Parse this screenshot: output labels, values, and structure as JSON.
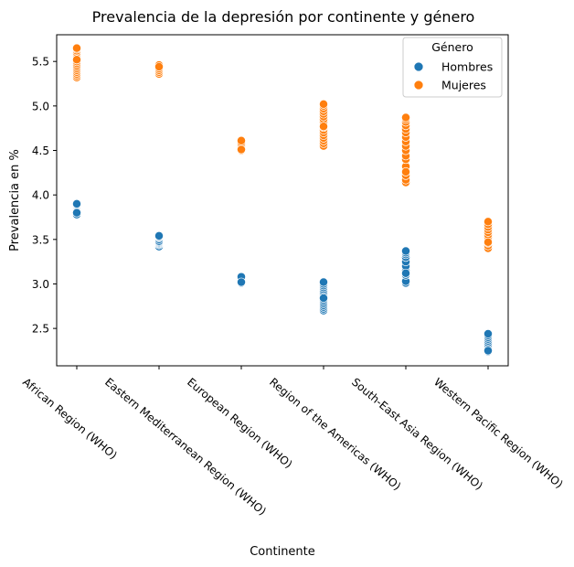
{
  "colors": {
    "hombres": "#1f77b4",
    "mujeres": "#ff7f0e"
  },
  "chart_data": {
    "type": "scatter",
    "title": "Prevalencia de la depresión por continente y género",
    "xlabel": "Continente",
    "ylabel": "Prevalencia en %",
    "categories": [
      "African Region (WHO)",
      "Eastern Mediterranean Region (WHO)",
      "European Region (WHO)",
      "Region of the Americas (WHO)",
      "South-East Asia Region (WHO)",
      "Western Pacific Region (WHO)"
    ],
    "ylim": [
      2.08,
      5.8
    ],
    "yticks": [
      "2.5",
      "3.0",
      "3.5",
      "4.0",
      "4.5",
      "5.0",
      "5.5"
    ],
    "grid": false,
    "legend": {
      "title": "Género",
      "placement": "top-right"
    },
    "series": [
      {
        "name": "Hombres",
        "color": "#1f77b4",
        "values": [
          [
            3.78,
            3.8,
            3.81,
            3.82,
            3.83,
            3.84,
            3.85,
            3.86,
            3.87,
            3.88,
            3.89,
            3.9,
            3.8
          ],
          [
            3.42,
            3.44,
            3.45,
            3.46,
            3.47,
            3.48,
            3.5,
            3.52,
            3.53,
            3.54
          ],
          [
            3.01,
            3.02,
            3.03,
            3.04,
            3.05,
            3.06,
            3.07,
            3.08,
            3.02
          ],
          [
            2.7,
            2.72,
            2.74,
            2.76,
            2.78,
            2.8,
            2.82,
            2.84,
            2.86,
            2.88,
            2.9,
            2.92,
            2.94,
            2.96,
            2.98,
            3.0,
            3.02,
            2.84
          ],
          [
            3.01,
            3.03,
            3.1,
            3.12,
            3.15,
            3.2,
            3.25,
            3.3,
            3.33,
            3.35,
            3.37,
            3.12
          ],
          [
            2.24,
            2.27,
            2.3,
            2.32,
            2.34,
            2.36,
            2.38,
            2.4,
            2.42,
            2.44,
            2.25
          ]
        ]
      },
      {
        "name": "Mujeres",
        "color": "#ff7f0e",
        "values": [
          [
            5.32,
            5.34,
            5.36,
            5.38,
            5.4,
            5.42,
            5.44,
            5.46,
            5.48,
            5.5,
            5.52,
            5.54,
            5.56,
            5.58,
            5.6,
            5.62,
            5.64,
            5.65,
            5.52
          ],
          [
            5.36,
            5.38,
            5.4,
            5.42,
            5.44,
            5.45,
            5.46,
            5.44
          ],
          [
            4.5,
            4.52,
            4.55,
            4.57,
            4.59,
            4.61,
            4.51
          ],
          [
            4.55,
            4.58,
            4.61,
            4.64,
            4.67,
            4.7,
            4.73,
            4.76,
            4.79,
            4.82,
            4.85,
            4.88,
            4.91,
            4.94,
            4.97,
            5.0,
            5.02,
            4.77
          ],
          [
            4.14,
            4.17,
            4.22,
            4.26,
            4.32,
            4.4,
            4.44,
            4.5,
            4.55,
            4.6,
            4.65,
            4.7,
            4.74,
            4.78,
            4.82,
            4.85,
            4.87,
            4.26
          ],
          [
            3.4,
            3.43,
            3.46,
            3.49,
            3.52,
            3.55,
            3.58,
            3.61,
            3.64,
            3.67,
            3.7,
            3.47
          ]
        ]
      }
    ]
  }
}
